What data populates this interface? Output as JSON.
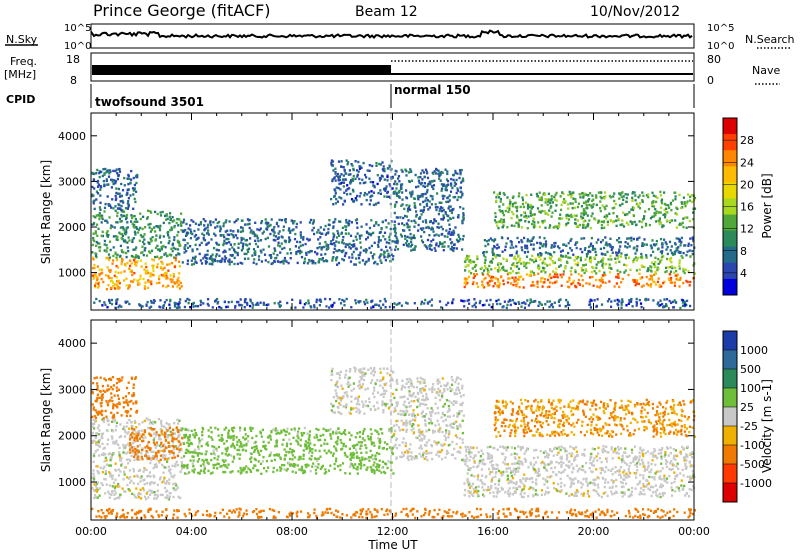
{
  "header": {
    "station": "Prince George (fitACF)",
    "beam": "Beam 12",
    "date": "10/Nov/2012"
  },
  "small_panels": {
    "nsky_label": "N.Sky",
    "nsearch_label": "N.Search",
    "freq_label_1": "Freq.",
    "freq_label_2": "[MHz]",
    "nave_label": "Nave",
    "cpid_label": "CPID",
    "noise_left_ticks": [
      "10^5",
      "10^0"
    ],
    "noise_right_ticks": [
      "10^5",
      "10^0"
    ],
    "freq_left_ticks": [
      "18",
      "8"
    ],
    "nave_right_ticks": [
      "80",
      "0"
    ],
    "cpid_segments": [
      {
        "label": "twofsound 3501",
        "start": "00:00",
        "end": "12:00"
      },
      {
        "label": "normal 150",
        "start": "12:00",
        "end": "24:00"
      }
    ]
  },
  "colorbars": {
    "power": {
      "label": "Power [dB]",
      "ticks": [
        "28",
        "24",
        "20",
        "16",
        "12",
        "8",
        "4"
      ],
      "colors": [
        "#dd0000",
        "#ff4000",
        "#ff8800",
        "#ffbb00",
        "#e8d800",
        "#a8d820",
        "#50a838",
        "#2a8a5a",
        "#246a8a",
        "#2a46b0",
        "#0000dd"
      ]
    },
    "velocity": {
      "label": "Velocity [m s-1]",
      "ticks": [
        "1000",
        "500",
        "100",
        "25",
        "-25",
        "-100",
        "-500",
        "-1000"
      ],
      "colors": [
        "#1c3caa",
        "#2c6a9a",
        "#2a8a5a",
        "#6fbe3a",
        "#c8c8c8",
        "#f0b000",
        "#f07a00",
        "#ff3a00",
        "#dd0000"
      ]
    }
  },
  "axes": {
    "yticks": [
      "4000",
      "3000",
      "2000",
      "1000"
    ],
    "ylabel": "Slant Range [km]",
    "xticks": [
      "00:00",
      "04:00",
      "08:00",
      "12:00",
      "16:00",
      "20:00",
      "00:00"
    ],
    "xlabel": "Time UT"
  },
  "chart_data": [
    {
      "type": "heatmap",
      "title": "Prince George (fitACF) Beam 12 10/Nov/2012",
      "xlabel": "Time UT",
      "ylabel": "Slant Range [km]",
      "xlim": [
        "00:00",
        "24:00"
      ],
      "ylim": [
        180,
        4500
      ],
      "quantity": "Power",
      "colorbar_label": "Power [dB]",
      "colorbar_range": [
        0,
        32
      ],
      "grid": false,
      "regions": [
        {
          "t": [
            0.0,
            3.6
          ],
          "r": [
            650,
            1350
          ],
          "value": 24
        },
        {
          "t": [
            0.0,
            3.6
          ],
          "r": [
            1350,
            2400
          ],
          "value": 10
        },
        {
          "t": [
            0.0,
            1.8
          ],
          "r": [
            2400,
            3300
          ],
          "value": 6
        },
        {
          "t": [
            3.6,
            12.0
          ],
          "r": [
            1200,
            2200
          ],
          "value": 6
        },
        {
          "t": [
            9.5,
            12.0
          ],
          "r": [
            2500,
            3500
          ],
          "value": 5
        },
        {
          "t": [
            12.0,
            14.8
          ],
          "r": [
            1500,
            3300
          ],
          "value": 6
        },
        {
          "t": [
            14.8,
            24.0
          ],
          "r": [
            700,
            1000
          ],
          "value": 26
        },
        {
          "t": [
            14.8,
            24.0
          ],
          "r": [
            1000,
            1400
          ],
          "value": 14
        },
        {
          "t": [
            15.5,
            24.0
          ],
          "r": [
            1400,
            1800
          ],
          "value": 6
        },
        {
          "t": [
            16.0,
            24.0
          ],
          "r": [
            2000,
            2800
          ],
          "value": 12
        },
        {
          "t": [
            0.0,
            24.0
          ],
          "r": [
            250,
            450
          ],
          "value": 5
        }
      ]
    },
    {
      "type": "heatmap",
      "xlabel": "Time UT",
      "ylabel": "Slant Range [km]",
      "xlim": [
        "00:00",
        "24:00"
      ],
      "ylim": [
        180,
        4500
      ],
      "quantity": "Velocity",
      "colorbar_label": "Velocity [m s-1]",
      "colorbar_range": [
        -1000,
        1000
      ],
      "grid": false,
      "regions": [
        {
          "t": [
            0.0,
            3.6
          ],
          "r": [
            650,
            2400
          ],
          "value": 0
        },
        {
          "t": [
            0.0,
            1.8
          ],
          "r": [
            2400,
            3300
          ],
          "value": -150
        },
        {
          "t": [
            1.5,
            3.6
          ],
          "r": [
            1500,
            2200
          ],
          "value": -200
        },
        {
          "t": [
            3.6,
            12.0
          ],
          "r": [
            1200,
            2200
          ],
          "value": 50
        },
        {
          "t": [
            9.5,
            12.0
          ],
          "r": [
            2500,
            3500
          ],
          "value": 0
        },
        {
          "t": [
            12.0,
            14.8
          ],
          "r": [
            1500,
            3300
          ],
          "value": 0
        },
        {
          "t": [
            14.8,
            24.0
          ],
          "r": [
            700,
            1800
          ],
          "value": 0
        },
        {
          "t": [
            16.0,
            24.0
          ],
          "r": [
            2000,
            2800
          ],
          "value": -100
        },
        {
          "t": [
            0.0,
            24.0
          ],
          "r": [
            250,
            450
          ],
          "value": -150
        }
      ]
    }
  ]
}
